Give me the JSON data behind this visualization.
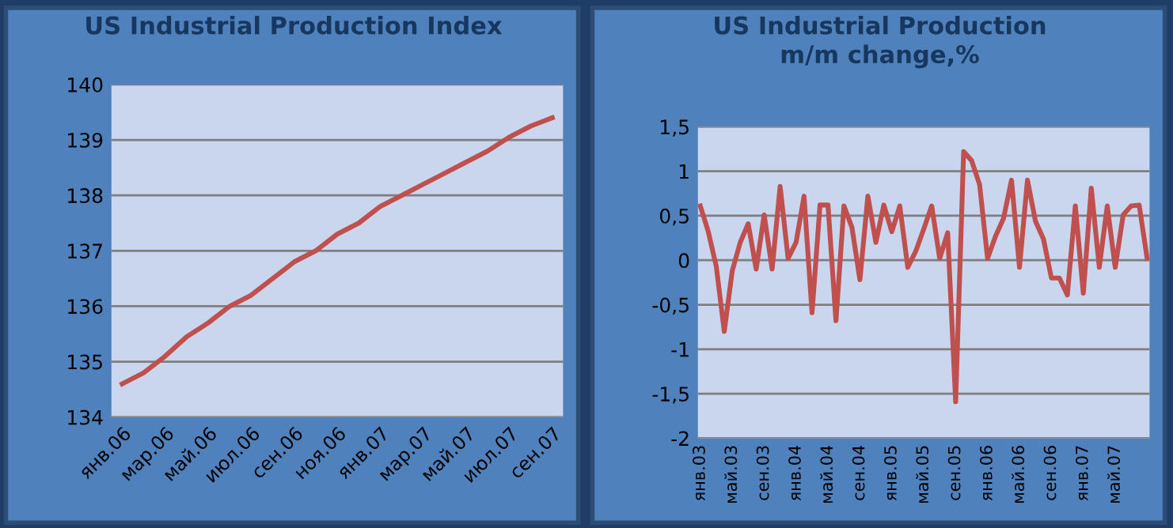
{
  "chart_data": [
    {
      "type": "line",
      "title": "US Industrial Production Index",
      "categories": [
        "янв.06",
        null,
        "мар.06",
        null,
        "май.06",
        null,
        "июл.06",
        null,
        "сен.06",
        null,
        "ноя.06",
        null,
        "янв.07",
        null,
        "мар.07",
        null,
        "май.07",
        null,
        "июл.07",
        null,
        "сен.07"
      ],
      "series": [
        {
          "color": "#c0504d",
          "values": [
            134.6,
            134.8,
            135.1,
            135.45,
            135.7,
            136.0,
            136.2,
            136.5,
            136.8,
            137.0,
            137.3,
            137.5,
            137.8,
            138.0,
            138.2,
            138.4,
            138.6,
            138.8,
            139.05,
            139.25,
            139.4
          ]
        }
      ],
      "ylim": [
        134,
        140
      ],
      "yticks": [
        134,
        135,
        136,
        137,
        138,
        139,
        140
      ],
      "grid": "y",
      "marker": "none",
      "line_style": "solid"
    },
    {
      "type": "line",
      "title": "US Industrial Production\nm/m change,%",
      "categories": [
        "янв.03",
        null,
        null,
        null,
        "май.03",
        null,
        null,
        null,
        "сен.03",
        null,
        null,
        null,
        "янв.04",
        null,
        null,
        null,
        "май.04",
        null,
        null,
        null,
        "сен.04",
        null,
        null,
        null,
        "янв.05",
        null,
        null,
        null,
        "май.05",
        null,
        null,
        null,
        "сен.05",
        null,
        null,
        null,
        "янв.06",
        null,
        null,
        null,
        "май.06",
        null,
        null,
        null,
        "сен.06",
        null,
        null,
        null,
        "янв.07",
        null,
        null,
        null,
        "май.07",
        null,
        null,
        null,
        null
      ],
      "series": [
        {
          "color": "#c0504d",
          "values": [
            0.61,
            0.32,
            -0.07,
            -0.8,
            -0.12,
            0.2,
            0.41,
            -0.1,
            0.51,
            -0.1,
            0.83,
            0.02,
            0.2,
            0.72,
            -0.59,
            0.62,
            0.62,
            -0.68,
            0.61,
            0.37,
            -0.22,
            0.72,
            0.2,
            0.62,
            0.32,
            0.61,
            -0.08,
            0.1,
            0.35,
            0.61,
            0.02,
            0.31,
            -1.59,
            1.22,
            1.12,
            0.85,
            0.02,
            0.27,
            0.47,
            0.9,
            -0.08,
            0.9,
            0.44,
            0.24,
            -0.2,
            -0.2,
            -0.39,
            0.61,
            -0.37,
            0.81,
            -0.08,
            0.61,
            -0.08,
            0.51,
            0.61,
            0.62,
            0.02
          ]
        }
      ],
      "ylim": [
        -2,
        1.5
      ],
      "yticks": [
        {
          "value": -2,
          "label": "-2"
        },
        {
          "value": -1.5,
          "label": "-1,5"
        },
        {
          "value": -1,
          "label": "-1"
        },
        {
          "value": -0.5,
          "label": "-0,5"
        },
        {
          "value": 0,
          "label": "0"
        },
        {
          "value": 0.5,
          "label": "0,5"
        },
        {
          "value": 1,
          "label": "1"
        },
        {
          "value": 1.5,
          "label": "1,5"
        }
      ],
      "grid": "y",
      "marker": "none",
      "line_style": "solid"
    }
  ]
}
